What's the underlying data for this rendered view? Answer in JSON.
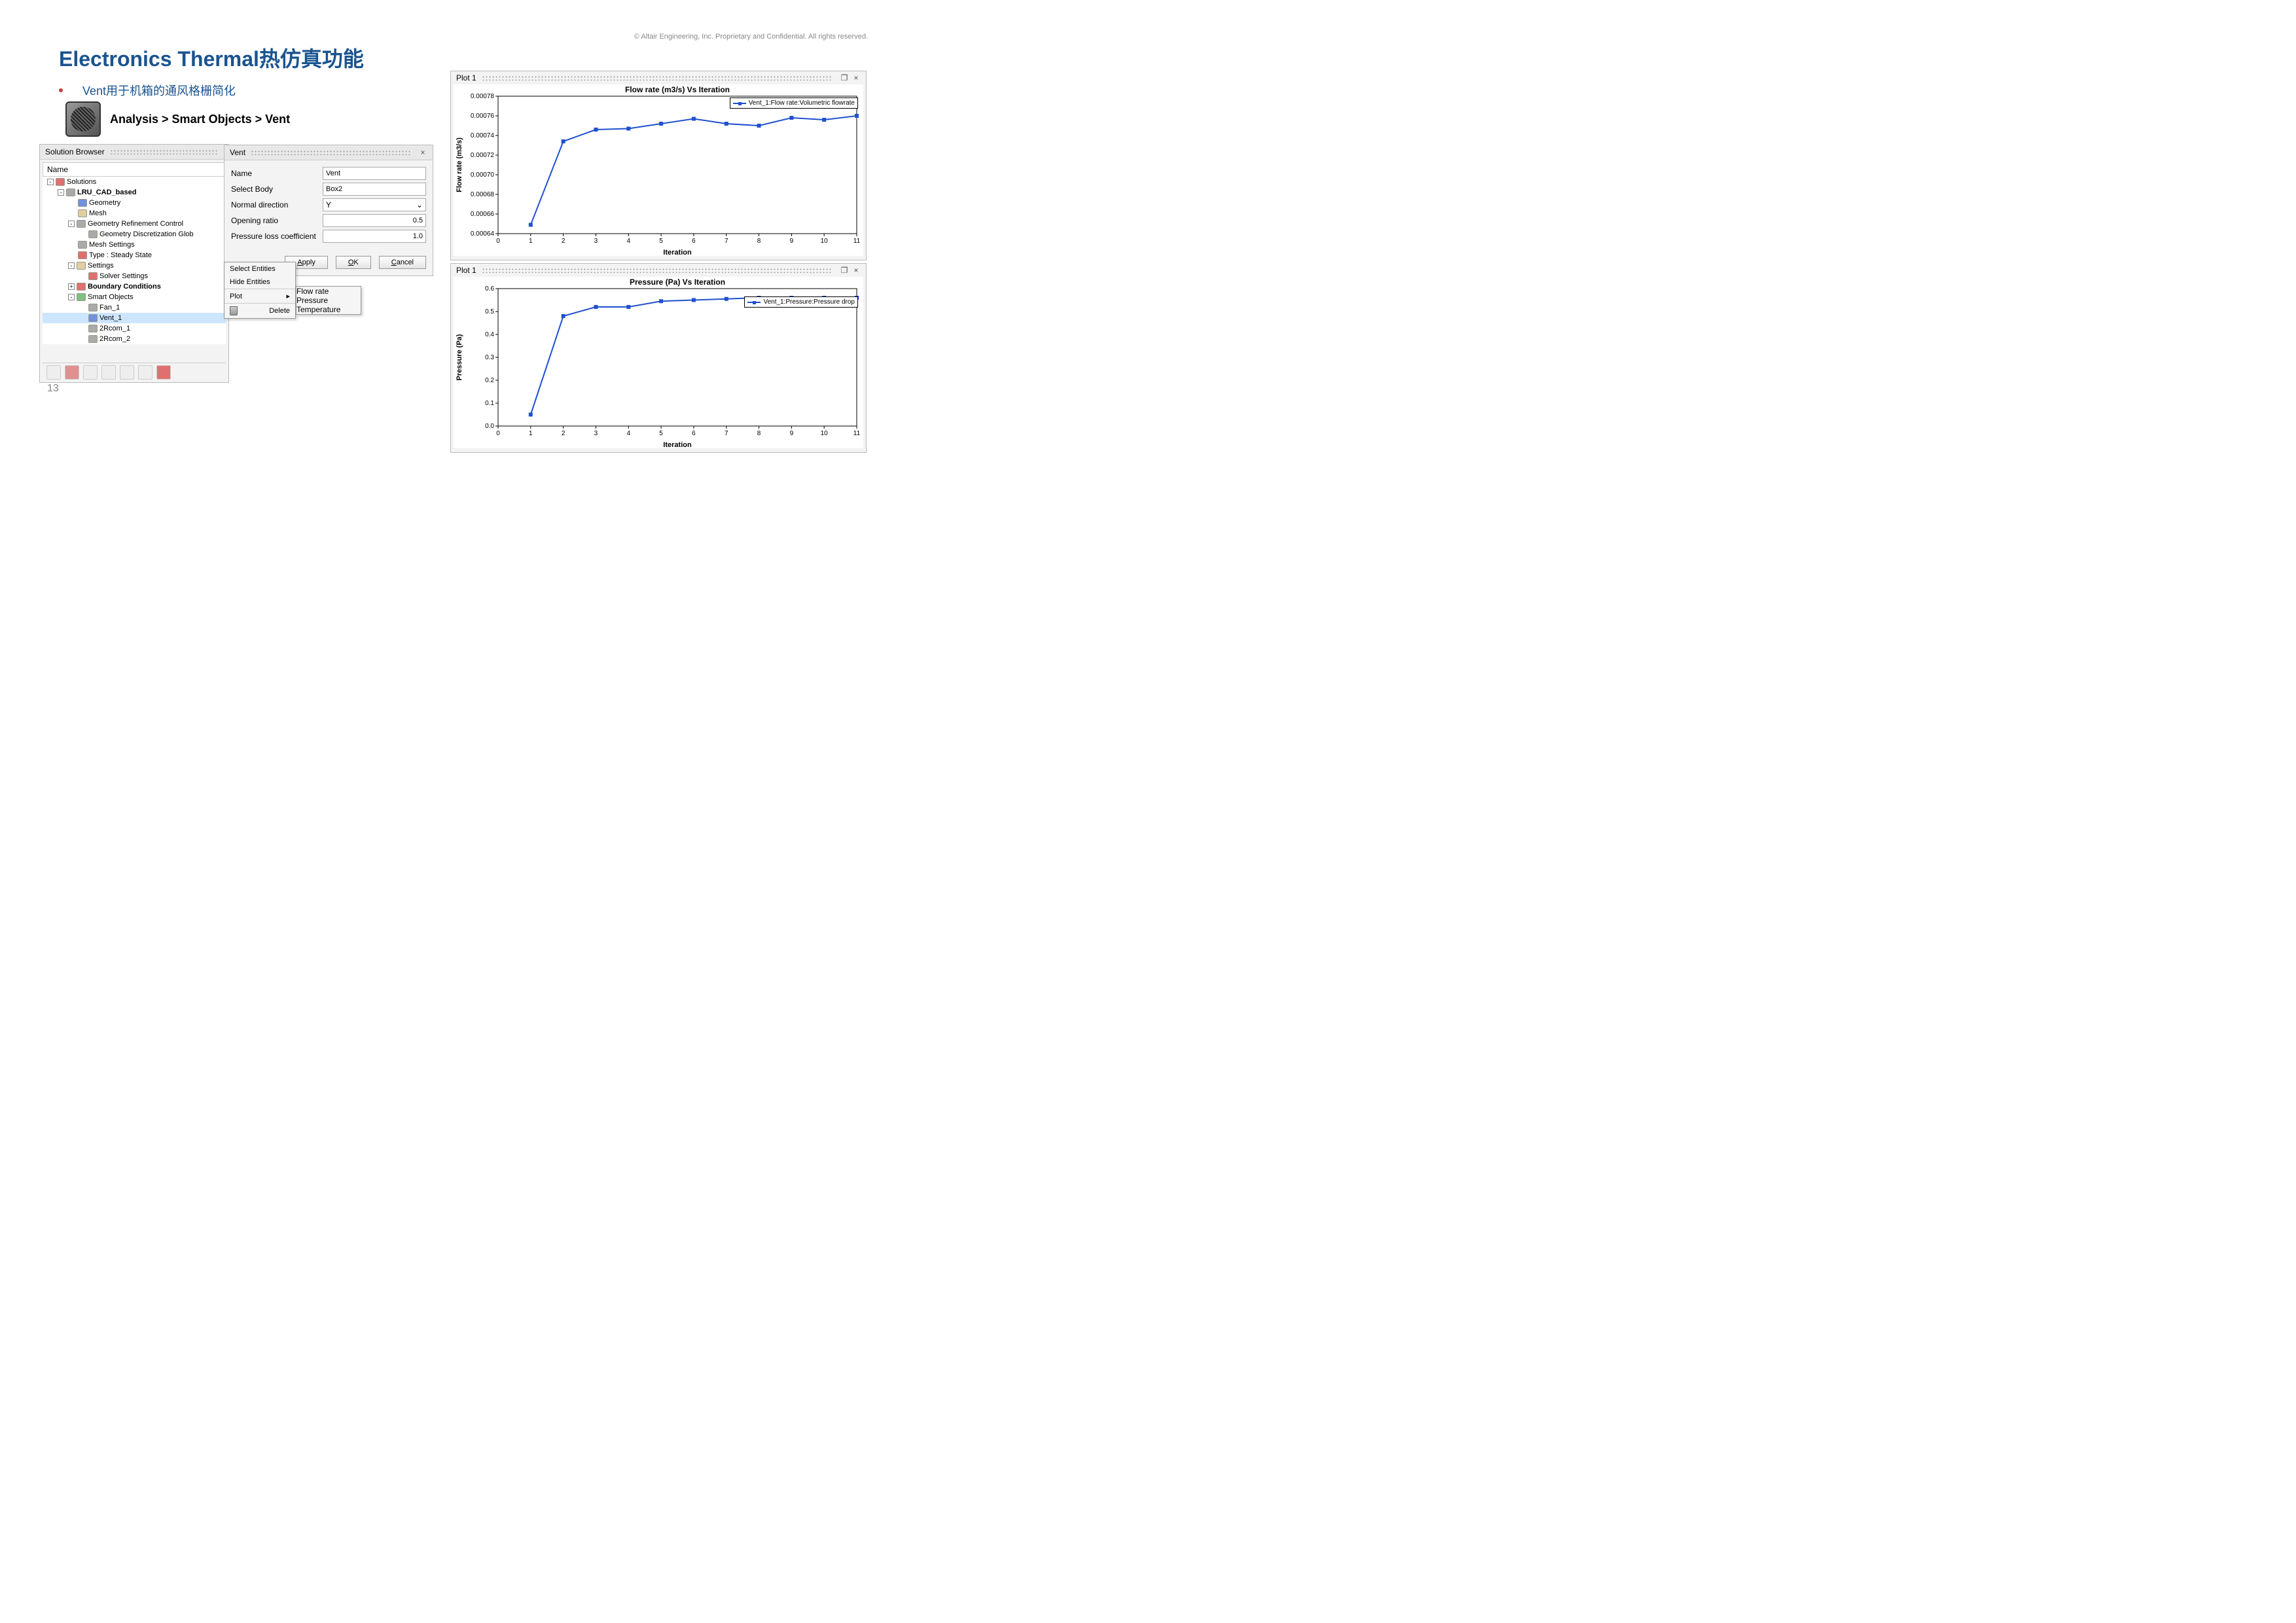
{
  "copyright": "© Altair Engineering, Inc. Proprietary and Confidential. All rights reserved.",
  "title": "Electronics Thermal热仿真功能",
  "bullet": "Vent用于机箱的通风格栅简化",
  "breadcrumb": "Analysis  >  Smart Objects  >  Vent",
  "page_number": "13",
  "browser": {
    "title": "Solution Browser",
    "header": "Name",
    "tree": [
      {
        "indent": 0,
        "exp": "-",
        "icon": "red",
        "label": "Solutions",
        "bold": false
      },
      {
        "indent": 1,
        "exp": "-",
        "icon": "gry",
        "label": "LRU_CAD_based",
        "bold": true
      },
      {
        "indent": 2,
        "exp": "",
        "icon": "blue",
        "label": "Geometry",
        "bold": false
      },
      {
        "indent": 2,
        "exp": "",
        "icon": "ico",
        "label": "Mesh",
        "bold": false
      },
      {
        "indent": 2,
        "exp": "-",
        "icon": "gry",
        "label": "Geometry Refinement Control",
        "bold": false
      },
      {
        "indent": 3,
        "exp": "",
        "icon": "gry",
        "label": "Geometry Discretization Glob",
        "bold": false
      },
      {
        "indent": 2,
        "exp": "",
        "icon": "gry",
        "label": "Mesh Settings",
        "bold": false
      },
      {
        "indent": 2,
        "exp": "",
        "icon": "red",
        "label": "Type : Steady State",
        "bold": false
      },
      {
        "indent": 2,
        "exp": "-",
        "icon": "ico",
        "label": "Settings",
        "bold": false
      },
      {
        "indent": 3,
        "exp": "",
        "icon": "red",
        "label": "Solver Settings",
        "bold": false
      },
      {
        "indent": 2,
        "exp": "+",
        "icon": "red",
        "label": "Boundary Conditions",
        "bold": true
      },
      {
        "indent": 2,
        "exp": "-",
        "icon": "grn",
        "label": "Smart Objects",
        "bold": false
      },
      {
        "indent": 3,
        "exp": "",
        "icon": "gry",
        "label": "Fan_1",
        "bold": false
      },
      {
        "indent": 3,
        "exp": "",
        "icon": "blue",
        "label": "Vent_1",
        "bold": false,
        "sel": true
      },
      {
        "indent": 3,
        "exp": "",
        "icon": "gry",
        "label": "2Rcom_1",
        "bold": false
      },
      {
        "indent": 3,
        "exp": "",
        "icon": "gry",
        "label": "2Rcom_2",
        "bold": false
      }
    ]
  },
  "vent_dialog": {
    "title": "Vent",
    "fields": {
      "name": {
        "label": "Name",
        "value": "Vent"
      },
      "body": {
        "label": "Select Body",
        "value": "Box2"
      },
      "normal": {
        "label": "Normal direction",
        "value": "Y"
      },
      "ratio": {
        "label": "Opening ratio",
        "value": "0.5"
      },
      "loss": {
        "label": "Pressure loss coefficient",
        "value": "1.0"
      }
    },
    "buttons": {
      "apply": "Apply",
      "ok": "OK",
      "cancel": "Cancel"
    }
  },
  "context_menu": {
    "items": [
      "Select Entities",
      "Hide Entities",
      "Plot",
      "Delete"
    ],
    "submenu": [
      "Flow rate",
      "Pressure",
      "Temperature"
    ]
  },
  "plot_flow": {
    "panel_title": "Plot 1",
    "chart_title": "Flow rate (m3/s) Vs Iteration",
    "xlabel": "Iteration",
    "ylabel": "Flow rate (m3/s)",
    "legend": "Vent_1:Flow rate:Volumetric flowrate",
    "line_color": "#2050d0",
    "marker_color": "#2050d0",
    "bg_color": "#ffffff",
    "grid_color": "#000000",
    "xlim": [
      0,
      11
    ],
    "ylim": [
      0.00064,
      0.00078
    ],
    "xticks": [
      0,
      1,
      2,
      3,
      4,
      5,
      6,
      7,
      8,
      9,
      10,
      11
    ],
    "yticks": [
      0.00064,
      0.00066,
      0.00068,
      0.0007,
      0.00072,
      0.00074,
      0.00076,
      0.00078
    ],
    "ytick_labels": [
      "0.00064",
      "0.00066",
      "0.00068",
      "0.00070",
      "0.00072",
      "0.00074",
      "0.00076",
      "0.00078"
    ],
    "x": [
      1,
      2,
      3,
      4,
      5,
      6,
      7,
      8,
      9,
      10,
      11
    ],
    "y": [
      0.000649,
      0.000734,
      0.000746,
      0.000747,
      0.000752,
      0.000757,
      0.000752,
      0.00075,
      0.000758,
      0.000756,
      0.00076
    ]
  },
  "plot_pressure": {
    "panel_title": "Plot 1",
    "chart_title": "Pressure (Pa) Vs Iteration",
    "xlabel": "Iteration",
    "ylabel": "Pressure (Pa)",
    "legend": "Vent_1:Pressure:Pressure drop",
    "line_color": "#2050d0",
    "marker_color": "#2050d0",
    "bg_color": "#ffffff",
    "grid_color": "#000000",
    "xlim": [
      0,
      11
    ],
    "ylim": [
      0.0,
      0.6
    ],
    "xticks": [
      0,
      1,
      2,
      3,
      4,
      5,
      6,
      7,
      8,
      9,
      10,
      11
    ],
    "yticks": [
      0.0,
      0.1,
      0.2,
      0.3,
      0.4,
      0.5,
      0.6
    ],
    "ytick_labels": [
      "0.0",
      "0.1",
      "0.2",
      "0.3",
      "0.4",
      "0.5",
      "0.6"
    ],
    "x": [
      1,
      2,
      3,
      4,
      5,
      6,
      7,
      8,
      9,
      10,
      11
    ],
    "y": [
      0.05,
      0.48,
      0.52,
      0.52,
      0.545,
      0.55,
      0.555,
      0.56,
      0.56,
      0.56,
      0.56
    ]
  }
}
